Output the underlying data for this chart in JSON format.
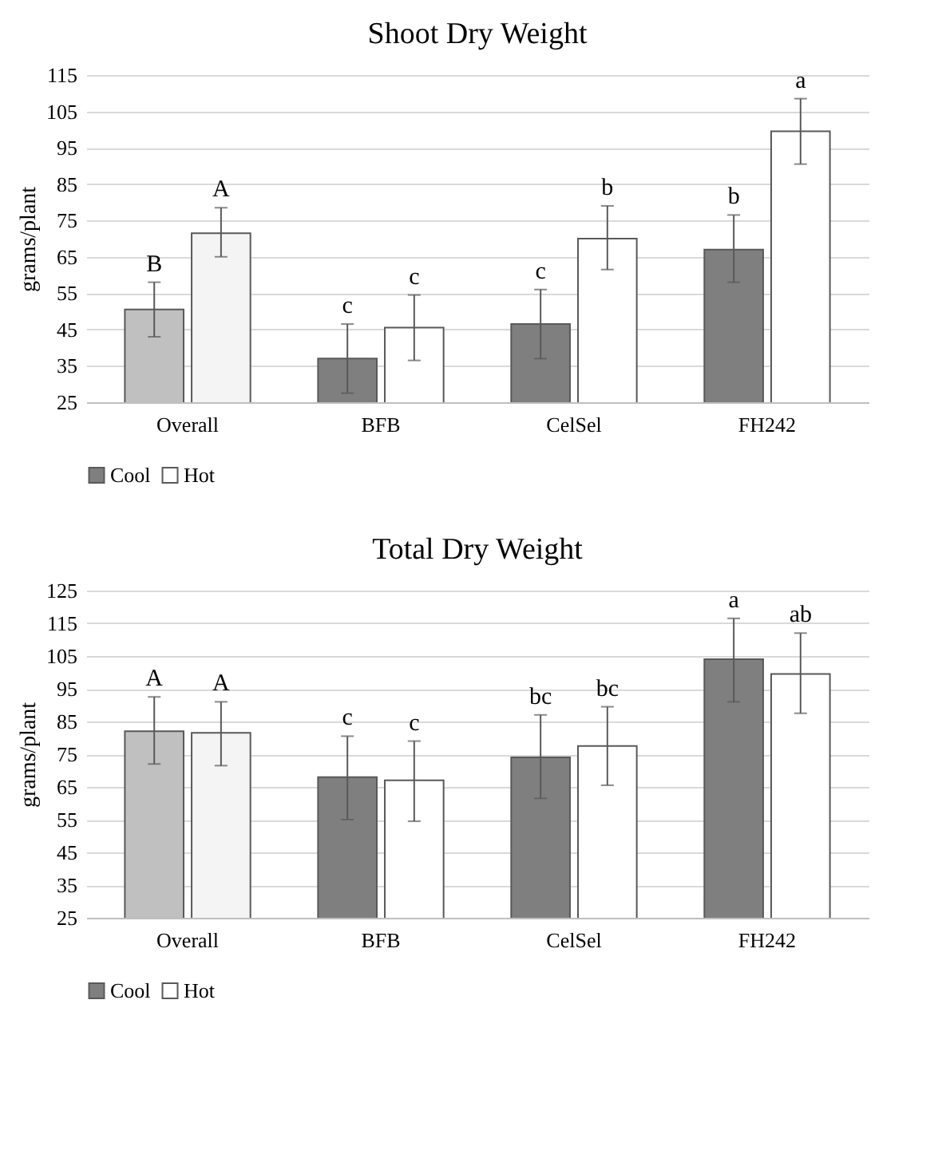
{
  "chart_data": [
    {
      "type": "bar",
      "title": "Shoot Dry Weight",
      "ylabel": "grams/plant",
      "categories": [
        "Overall",
        "BFB",
        "CelSel",
        "FH242"
      ],
      "ylim": [
        25,
        115
      ],
      "yticks": [
        25,
        35,
        45,
        55,
        65,
        75,
        85,
        95,
        105,
        115
      ],
      "grid": "y",
      "legend": "bottom",
      "series": [
        {
          "name": "Cool",
          "color": "#7f7f7f",
          "colors": [
            "#c0c0c0",
            "#7f7f7f",
            "#7f7f7f",
            "#7f7f7f"
          ],
          "values": [
            50.5,
            37,
            46.5,
            67
          ],
          "errors": [
            [
              43,
              58
            ],
            [
              27.5,
              46.5
            ],
            [
              37,
              56
            ],
            [
              58,
              76.5
            ]
          ],
          "value_labels": [
            "B",
            "c",
            "c",
            "b"
          ]
        },
        {
          "name": "Hot",
          "color": "#ffffff",
          "colors": [
            "#f4f4f4",
            "#ffffff",
            "#ffffff",
            "#ffffff"
          ],
          "values": [
            71.5,
            45.5,
            70,
            99.5
          ],
          "errors": [
            [
              65,
              78.5
            ],
            [
              36.5,
              54.5
            ],
            [
              61.5,
              79
            ],
            [
              90.5,
              108.5
            ]
          ],
          "value_labels": [
            "A",
            "c",
            "b",
            "a"
          ]
        }
      ]
    },
    {
      "type": "bar",
      "title": "Total Dry Weight",
      "ylabel": "grams/plant",
      "categories": [
        "Overall",
        "BFB",
        "CelSel",
        "FH242"
      ],
      "ylim": [
        25,
        125
      ],
      "yticks": [
        25,
        35,
        45,
        55,
        65,
        75,
        85,
        95,
        105,
        115,
        125
      ],
      "grid": "y",
      "legend": "bottom",
      "series": [
        {
          "name": "Cool",
          "color": "#7f7f7f",
          "colors": [
            "#c0c0c0",
            "#7f7f7f",
            "#7f7f7f",
            "#7f7f7f"
          ],
          "values": [
            82,
            68,
            74,
            104
          ],
          "errors": [
            [
              72,
              92.5
            ],
            [
              55,
              80.5
            ],
            [
              61.5,
              87
            ],
            [
              91,
              116.5
            ]
          ],
          "value_labels": [
            "A",
            "c",
            "bc",
            "a"
          ]
        },
        {
          "name": "Hot",
          "color": "#ffffff",
          "colors": [
            "#f4f4f4",
            "#ffffff",
            "#ffffff",
            "#ffffff"
          ],
          "values": [
            81.5,
            67,
            77.5,
            99.5
          ],
          "errors": [
            [
              71.5,
              91
            ],
            [
              54.5,
              79
            ],
            [
              65.5,
              89.5
            ],
            [
              87.5,
              112
            ]
          ],
          "value_labels": [
            "A",
            "c",
            "bc",
            "ab"
          ]
        }
      ]
    }
  ]
}
